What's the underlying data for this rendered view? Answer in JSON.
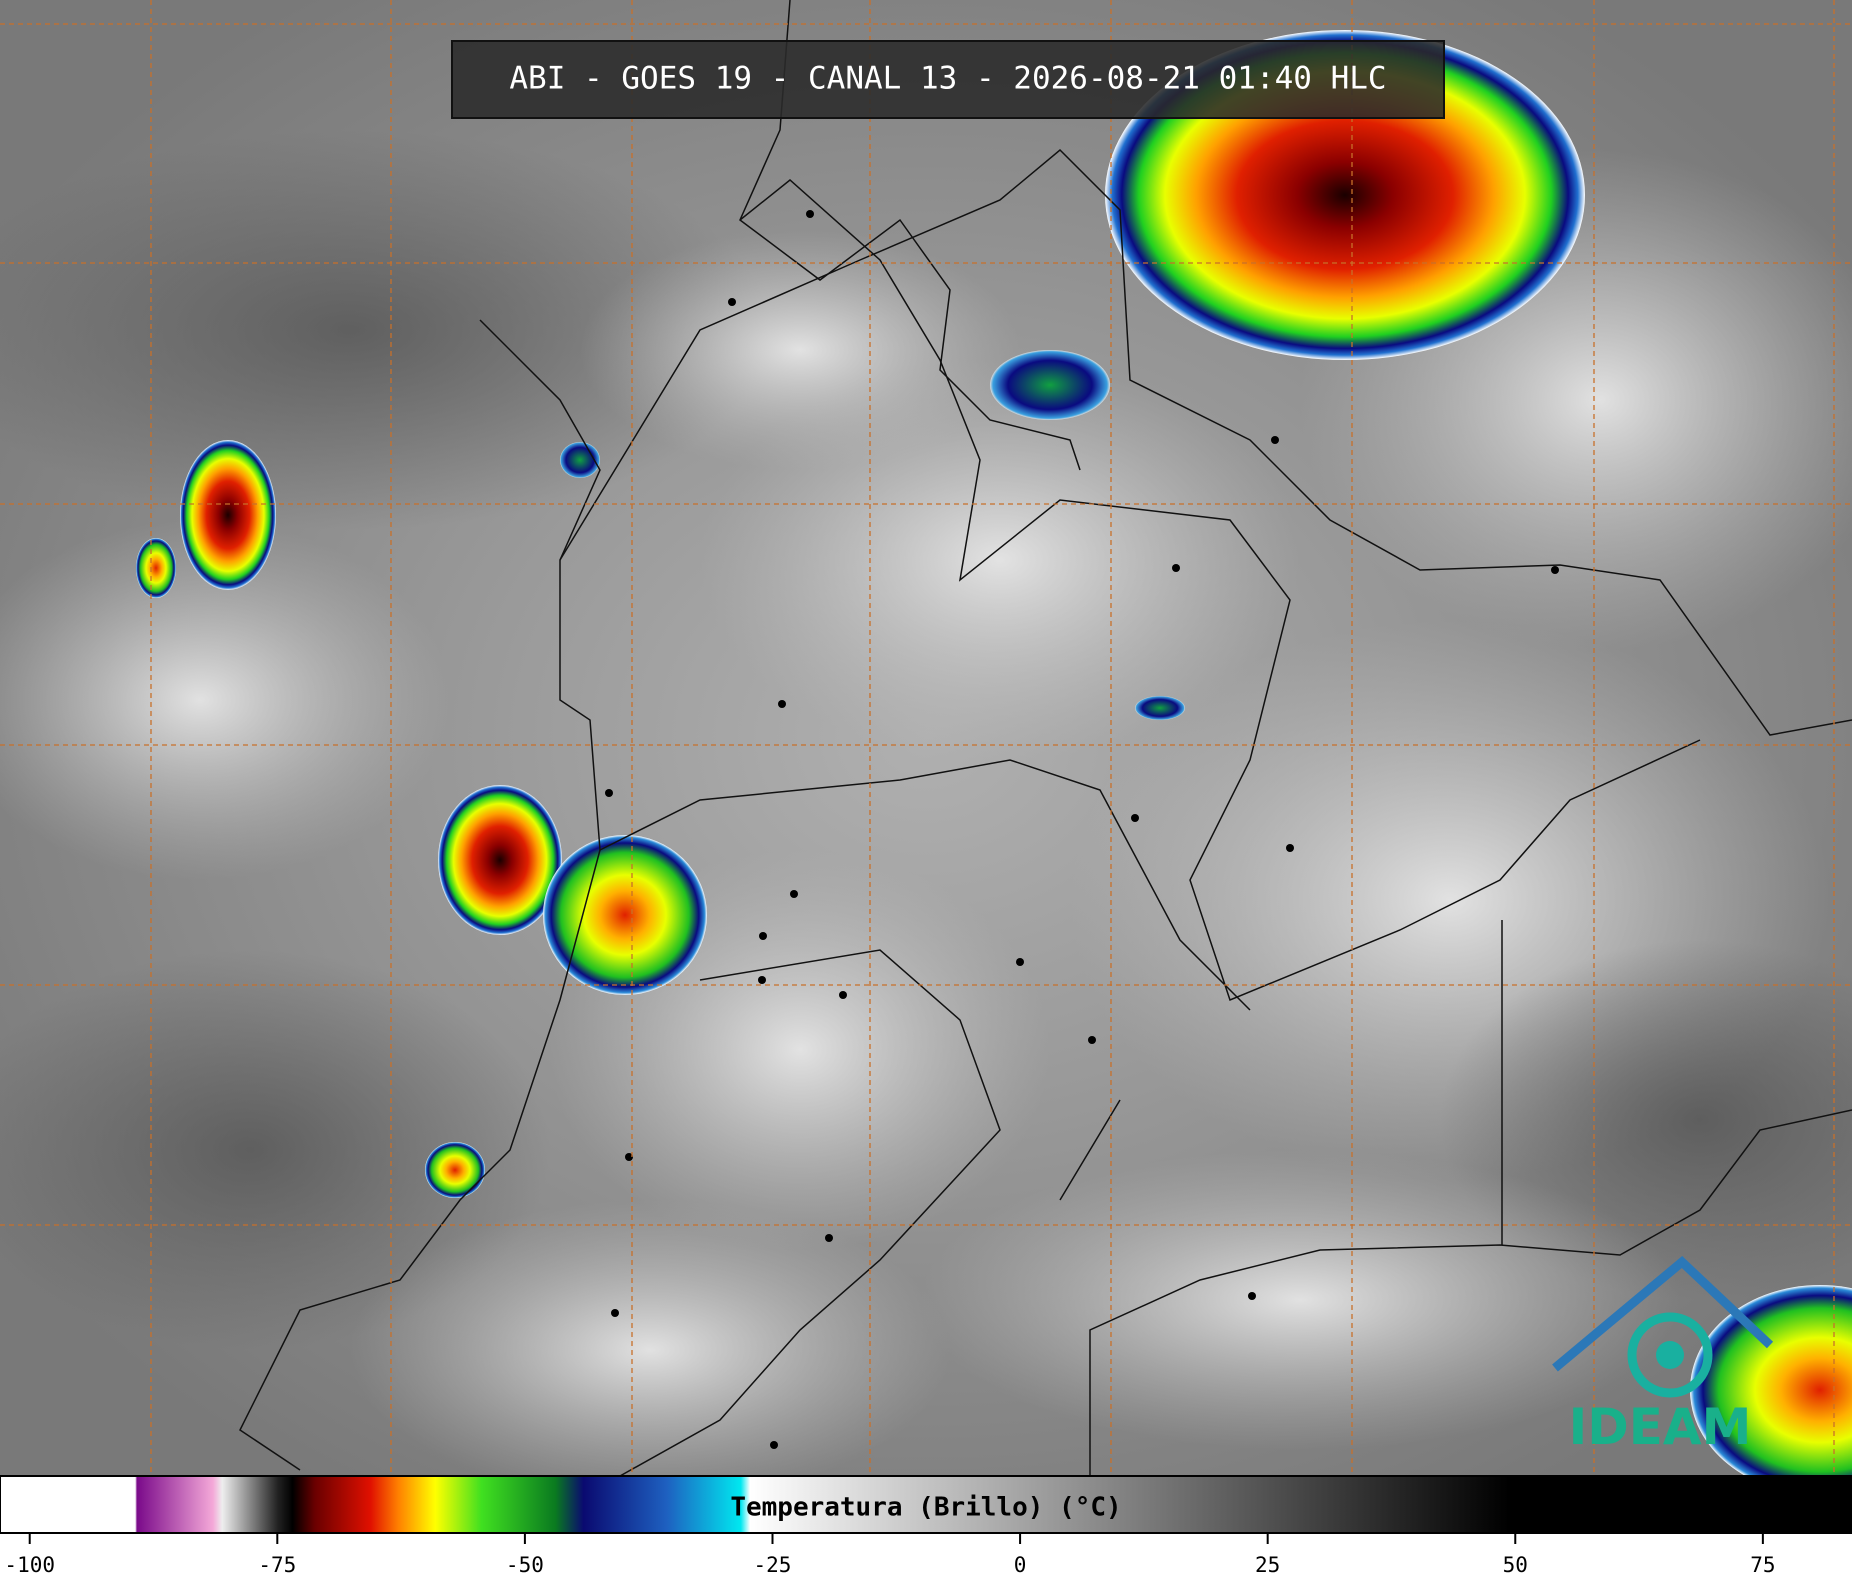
{
  "title": "ABI - GOES 19 - CANAL 13 - 2026-08-21 01:40 HLC",
  "logo": "IDEAM",
  "colorbar": {
    "label": "Temperatura (Brillo) (°C)",
    "lim": [
      -103,
      84
    ],
    "ticks": [
      -100,
      -75,
      -50,
      -25,
      0,
      25,
      50,
      75
    ]
  }
}
